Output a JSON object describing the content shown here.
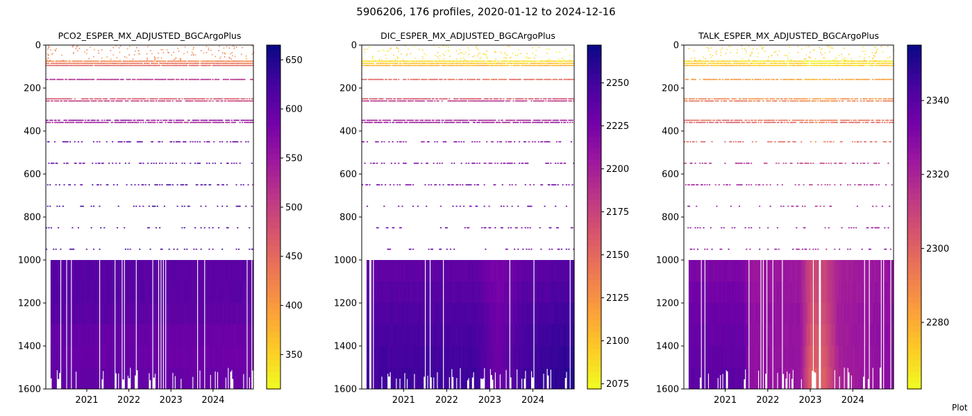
{
  "figure": {
    "title": "5906206, 176 profiles, 2020-01-12 to 2024-12-16",
    "corner_note": "Plot"
  },
  "chart_data": [
    {
      "type": "heatmap",
      "title": "PCO2_ESPER_MX_ADJUSTED_BGCArgoPlus",
      "xlabel": "",
      "ylabel": "",
      "x_range": [
        "2020-01-12",
        "2024-12-16"
      ],
      "x_ticks": [
        "2021",
        "2022",
        "2023",
        "2024"
      ],
      "ylim": [
        1600,
        0
      ],
      "y_ticks": [
        0,
        200,
        400,
        600,
        800,
        1000,
        1200,
        1400,
        1600
      ],
      "colormap": "plasma_r",
      "colorbar": {
        "range": [
          315,
          665
        ],
        "ticks": [
          350,
          400,
          450,
          500,
          550,
          600,
          650
        ]
      },
      "depth_levels": [
        75,
        85,
        95,
        160,
        250,
        260,
        350,
        360,
        450,
        550,
        650,
        750,
        850,
        950
      ],
      "level_values": [
        420,
        440,
        455,
        520,
        470,
        500,
        560,
        540,
        600,
        610,
        620,
        625,
        630,
        630
      ],
      "deep_layers": [
        {
          "top": 1000,
          "bottom": 1100,
          "value": 610
        },
        {
          "top": 1100,
          "bottom": 1200,
          "value": 612
        },
        {
          "top": 1200,
          "bottom": 1300,
          "value": 608
        },
        {
          "top": 1300,
          "bottom": 1400,
          "value": 600
        },
        {
          "top": 1400,
          "bottom": 1500,
          "value": 598
        },
        {
          "top": 1500,
          "bottom": 1600,
          "value": 602
        }
      ],
      "deep_trend": [
        {
          "date": "2020-03-01",
          "delta": 0
        },
        {
          "date": "2024-12-16",
          "delta": -8
        }
      ]
    },
    {
      "type": "heatmap",
      "title": "DIC_ESPER_MX_ADJUSTED_BGCArgoPlus",
      "xlabel": "",
      "ylabel": "",
      "x_range": [
        "2020-01-12",
        "2024-12-16"
      ],
      "x_ticks": [
        "2021",
        "2022",
        "2023",
        "2024"
      ],
      "ylim": [
        1600,
        0
      ],
      "y_ticks": [
        0,
        200,
        400,
        600,
        800,
        1000,
        1200,
        1400,
        1600
      ],
      "colormap": "plasma_r",
      "colorbar": {
        "range": [
          2072,
          2272
        ],
        "ticks": [
          2075,
          2100,
          2125,
          2150,
          2175,
          2200,
          2225,
          2250
        ]
      },
      "depth_levels": [
        75,
        85,
        95,
        160,
        250,
        260,
        350,
        360,
        450,
        550,
        650,
        750,
        850,
        950
      ],
      "level_values": [
        2085,
        2095,
        2105,
        2150,
        2165,
        2185,
        2200,
        2205,
        2215,
        2220,
        2225,
        2228,
        2230,
        2232
      ],
      "deep_layers": [
        {
          "top": 1000,
          "bottom": 1100,
          "value": 2236
        },
        {
          "top": 1100,
          "bottom": 1200,
          "value": 2240
        },
        {
          "top": 1200,
          "bottom": 1300,
          "value": 2244
        },
        {
          "top": 1300,
          "bottom": 1400,
          "value": 2247
        },
        {
          "top": 1400,
          "bottom": 1500,
          "value": 2249
        },
        {
          "top": 1500,
          "bottom": 1600,
          "value": 2251
        }
      ],
      "deep_trend": [
        {
          "date": "2020-03-01",
          "delta": 0
        },
        {
          "date": "2022-09-01",
          "delta": 2
        },
        {
          "date": "2023-03-01",
          "delta": -22
        },
        {
          "date": "2023-10-01",
          "delta": 0
        },
        {
          "date": "2024-12-16",
          "delta": 12
        }
      ]
    },
    {
      "type": "heatmap",
      "title": "TALK_ESPER_MX_ADJUSTED_BGCArgoPlus",
      "xlabel": "",
      "ylabel": "",
      "x_range": [
        "2020-01-12",
        "2024-12-16"
      ],
      "x_ticks": [
        "2021",
        "2022",
        "2023",
        "2024"
      ],
      "ylim": [
        1600,
        0
      ],
      "y_ticks": [
        0,
        200,
        400,
        600,
        800,
        1000,
        1200,
        1400,
        1600
      ],
      "colormap": "plasma_r",
      "colorbar": {
        "range": [
          2262,
          2355
        ],
        "ticks": [
          2280,
          2300,
          2320,
          2340
        ]
      },
      "depth_levels": [
        75,
        85,
        95,
        160,
        250,
        260,
        350,
        360,
        450,
        550,
        650,
        750,
        850,
        950
      ],
      "level_values": [
        2270,
        2272,
        2275,
        2285,
        2290,
        2295,
        2298,
        2302,
        2300,
        2318,
        2322,
        2325,
        2328,
        2330
      ],
      "deep_layers": [
        {
          "top": 1000,
          "bottom": 1100,
          "value": 2332
        },
        {
          "top": 1100,
          "bottom": 1200,
          "value": 2334
        },
        {
          "top": 1200,
          "bottom": 1300,
          "value": 2336
        },
        {
          "top": 1300,
          "bottom": 1400,
          "value": 2337
        },
        {
          "top": 1400,
          "bottom": 1500,
          "value": 2338
        },
        {
          "top": 1500,
          "bottom": 1600,
          "value": 2339
        }
      ],
      "deep_trend": [
        {
          "date": "2020-03-01",
          "delta": 0
        },
        {
          "date": "2021-06-01",
          "delta": 0
        },
        {
          "date": "2021-08-01",
          "delta": -12
        },
        {
          "date": "2022-10-01",
          "delta": -14
        },
        {
          "date": "2023-01-01",
          "delta": -40
        },
        {
          "date": "2023-05-01",
          "delta": -38
        },
        {
          "date": "2023-09-01",
          "delta": -18
        },
        {
          "date": "2024-12-16",
          "delta": -10
        }
      ]
    }
  ]
}
